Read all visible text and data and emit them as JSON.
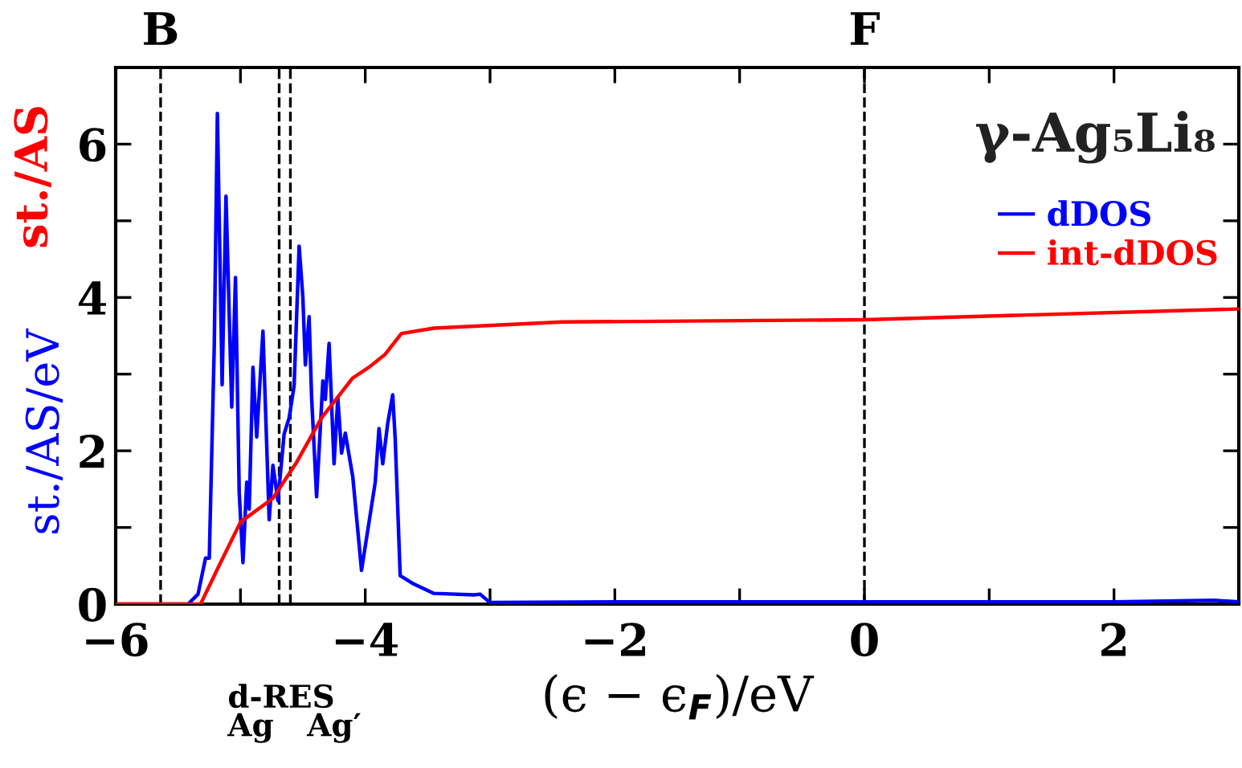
{
  "chart_data": {
    "type": "line",
    "title": "γ-Ag₅Li₈",
    "xlabel": "(ϵ − ϵ$_{F}$)/eV",
    "ylabel": "st./AS/eV",
    "annotations": [
      "st./AS",
      "d-RES",
      "Ag",
      "Ag′"
    ],
    "xlim": [
      -6,
      3
    ],
    "xticks": [
      -6,
      -4,
      -2,
      0,
      2
    ],
    "ylim": [
      0,
      7
    ],
    "yticks": [
      0,
      2,
      4,
      6
    ],
    "legend": "top right",
    "grid": false,
    "marker": "none",
    "line_style": "solid",
    "ref_lines": [
      {
        "axis": "x",
        "value": -5.64,
        "label": "B",
        "line_style": "dashed",
        "color": "#000000"
      },
      {
        "axis": "x",
        "value": -4.69,
        "line_style": "dashed",
        "color": "#000000"
      },
      {
        "axis": "x",
        "value": -4.6,
        "line_style": "dashed",
        "color": "#000000"
      },
      {
        "axis": "x",
        "value": 0,
        "label": "F",
        "line_style": "dashed",
        "color": "#000000"
      }
    ],
    "series": [
      {
        "name": "dDOS",
        "color": "#0000ff",
        "x": [
          -6,
          -5.42,
          -5.34,
          -5.28,
          -5.25,
          -5.21,
          -5.185,
          -5.147,
          -5.116,
          -5.07,
          -5.04,
          -5.01,
          -4.98,
          -4.95,
          -4.93,
          -4.9,
          -4.87,
          -4.82,
          -4.77,
          -4.74,
          -4.7,
          -4.65,
          -4.61,
          -4.57,
          -4.53,
          -4.5,
          -4.48,
          -4.45,
          -4.43,
          -4.39,
          -4.34,
          -4.32,
          -4.29,
          -4.25,
          -4.22,
          -4.19,
          -4.16,
          -4.1,
          -4.03,
          -3.92,
          -3.89,
          -3.86,
          -3.82,
          -3.78,
          -3.76,
          -3.72,
          -3.62,
          -3.45,
          -3.13,
          -3.08,
          -3.0,
          -2.0,
          -1.0,
          0,
          1,
          2,
          2.8,
          3
        ],
        "values": [
          0,
          0,
          0.13,
          0.6,
          0.6,
          3.37,
          6.4,
          2.86,
          5.32,
          2.57,
          4.26,
          1.45,
          0.54,
          1.59,
          1.24,
          3.09,
          2.18,
          3.56,
          1.1,
          1.81,
          1.35,
          2.22,
          2.43,
          2.85,
          4.67,
          4.0,
          3.12,
          3.75,
          2.7,
          1.4,
          2.91,
          2.67,
          3.4,
          1.83,
          2.69,
          1.97,
          2.23,
          1.66,
          0.44,
          1.59,
          2.29,
          1.83,
          2.36,
          2.73,
          2.15,
          0.37,
          0.27,
          0.14,
          0.12,
          0.13,
          0.02,
          0.03,
          0.03,
          0.03,
          0.03,
          0.03,
          0.05,
          0.03
        ]
      },
      {
        "name": "int-dDOS",
        "color": "#ff0000",
        "x": [
          -6,
          -5.32,
          -5.16,
          -5.0,
          -4.74,
          -4.55,
          -4.35,
          -4.1,
          -3.97,
          -3.84,
          -3.71,
          -3.45,
          -2.42,
          0,
          3
        ],
        "values": [
          0,
          0,
          0.54,
          1.07,
          1.38,
          1.85,
          2.43,
          2.95,
          3.09,
          3.26,
          3.53,
          3.6,
          3.68,
          3.71,
          3.85
        ]
      }
    ]
  }
}
